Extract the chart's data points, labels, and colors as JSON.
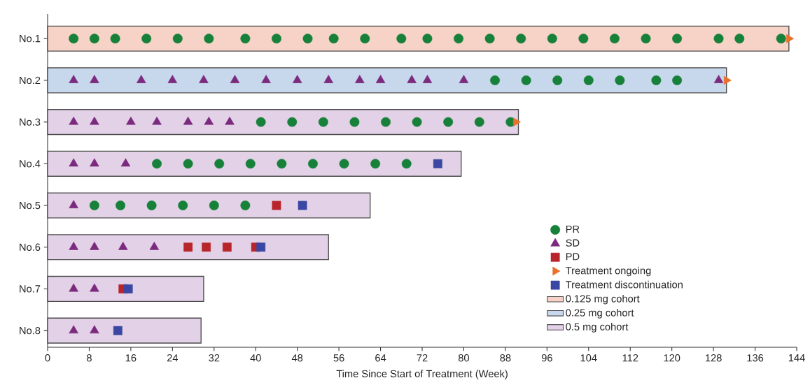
{
  "chart_data": {
    "type": "bar",
    "orientation": "horizontal",
    "xlabel": "Time Since Start of Treatment (Week)",
    "categories": [
      "No.1",
      "No.2",
      "No.3",
      "No.4",
      "No.5",
      "No.6",
      "No.7",
      "No.8"
    ],
    "xlim": [
      0,
      144
    ],
    "xticks": [
      0,
      8,
      16,
      24,
      32,
      40,
      48,
      56,
      64,
      72,
      80,
      88,
      96,
      104,
      112,
      120,
      128,
      136,
      144
    ],
    "legend": "bottom right",
    "series": [
      {
        "name": "0.125 mg cohort",
        "type": "bar",
        "color": "#f6d3c6",
        "values": [
          142.5,
          null,
          null,
          null,
          null,
          null,
          null,
          null
        ]
      },
      {
        "name": "0.25 mg cohort",
        "type": "bar",
        "color": "#c7d7ec",
        "values": [
          null,
          130.5,
          null,
          null,
          null,
          null,
          null,
          null
        ]
      },
      {
        "name": "0.5 mg cohort",
        "type": "bar",
        "color": "#e3d2e7",
        "values": [
          null,
          null,
          90.5,
          79.5,
          62,
          54,
          30,
          29.5
        ]
      },
      {
        "name": "PR",
        "type": "scatter",
        "marker": "circle",
        "color": "#17813a",
        "x": [
          "No.1",
          "No.1",
          "No.1",
          "No.1",
          "No.1",
          "No.1",
          "No.1",
          "No.1",
          "No.1",
          "No.1",
          "No.1",
          "No.1",
          "No.1",
          "No.1",
          "No.1",
          "No.1",
          "No.1",
          "No.1",
          "No.1",
          "No.1",
          "No.1",
          "No.1",
          "No.1",
          "No.1",
          "No.2",
          "No.2",
          "No.2",
          "No.2",
          "No.2",
          "No.2",
          "No.2",
          "No.3",
          "No.3",
          "No.3",
          "No.3",
          "No.3",
          "No.3",
          "No.3",
          "No.3",
          "No.3",
          "No.4",
          "No.4",
          "No.4",
          "No.4",
          "No.4",
          "No.4",
          "No.4",
          "No.4",
          "No.4",
          "No.5",
          "No.5",
          "No.5",
          "No.5",
          "No.5",
          "No.5"
        ],
        "values": [
          5,
          9,
          13,
          19,
          25,
          31,
          38,
          44,
          50,
          55,
          61,
          68,
          73,
          79,
          85,
          91,
          97,
          103,
          109,
          115,
          121,
          129,
          133,
          141,
          86,
          92,
          98,
          104,
          110,
          117,
          121,
          41,
          47,
          53,
          59,
          65,
          71,
          77,
          83,
          89,
          21,
          27,
          33,
          39,
          45,
          51,
          57,
          63,
          69,
          9,
          14,
          20,
          26,
          32,
          38
        ]
      },
      {
        "name": "SD",
        "type": "scatter",
        "marker": "triangle",
        "color": "#7b2a7e",
        "x": [
          "No.2",
          "No.2",
          "No.2",
          "No.2",
          "No.2",
          "No.2",
          "No.2",
          "No.2",
          "No.2",
          "No.2",
          "No.2",
          "No.2",
          "No.2",
          "No.2",
          "No.2",
          "No.3",
          "No.3",
          "No.3",
          "No.3",
          "No.3",
          "No.3",
          "No.3",
          "No.4",
          "No.4",
          "No.4",
          "No.5",
          "No.6",
          "No.6",
          "No.6",
          "No.6",
          "No.7",
          "No.7",
          "No.8",
          "No.8"
        ],
        "values": [
          5,
          9,
          18,
          24,
          30,
          36,
          42,
          48,
          54,
          60,
          64,
          70,
          73,
          80,
          129,
          5,
          9,
          16,
          21,
          27,
          31,
          35,
          5,
          9,
          15,
          5,
          5,
          9,
          14.5,
          20.5,
          5,
          9,
          5,
          9
        ]
      },
      {
        "name": "PD",
        "type": "scatter",
        "marker": "square",
        "color": "#b8262b",
        "x": [
          "No.5",
          "No.6",
          "No.6",
          "No.6",
          "No.6",
          "No.7"
        ],
        "values": [
          44,
          27,
          30.5,
          34.5,
          40,
          14.5
        ]
      },
      {
        "name": "Treatment ongoing",
        "type": "scatter",
        "marker": "triangle-right",
        "color": "#e8722b",
        "x": [
          "No.1",
          "No.2",
          "No.3"
        ],
        "values": [
          142.5,
          130.5,
          90
        ]
      },
      {
        "name": "Treatment discontinuation",
        "type": "scatter",
        "marker": "square",
        "color": "#3a47a3",
        "x": [
          "No.4",
          "No.5",
          "No.6",
          "No.7",
          "No.8"
        ],
        "values": [
          75,
          49,
          41,
          15.5,
          13.5
        ]
      }
    ]
  }
}
